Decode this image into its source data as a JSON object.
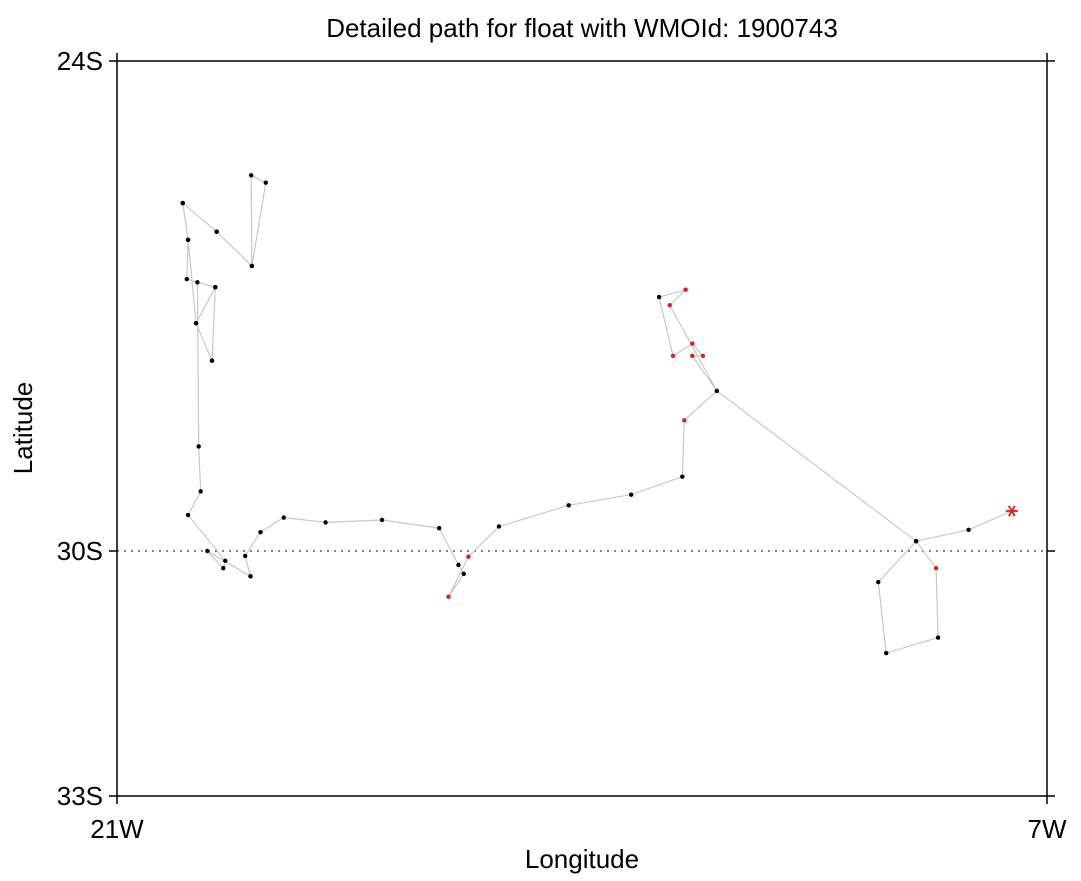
{
  "chart_data": {
    "type": "scatter",
    "title": "Detailed path for float with WMOId: 1900743",
    "xlabel": "Longitude",
    "ylabel": "Latitude",
    "xlim": [
      -21,
      -7
    ],
    "ylim": [
      -33,
      -24
    ],
    "x_ticks": [
      {
        "value": -21,
        "label": "21W"
      },
      {
        "value": -7,
        "label": "7W"
      }
    ],
    "y_ticks": [
      {
        "value": -24,
        "label": "24S"
      },
      {
        "value": -30,
        "label": "30S"
      },
      {
        "value": -33,
        "label": "33S"
      }
    ],
    "reference_line": {
      "y": -30,
      "style": "dotted"
    },
    "grid": false,
    "colors": {
      "path": "#c8c8c8",
      "point": "#000000",
      "highlight": "#e41a1c",
      "last": "#e41a1c"
    },
    "series": [
      {
        "values_lon_lat": [
          [
            -18.99,
            -30.31
          ],
          [
            -19.07,
            -30.06
          ],
          [
            -18.84,
            -29.77
          ],
          [
            -18.49,
            -29.59
          ],
          [
            -17.86,
            -29.65
          ],
          [
            -17.01,
            -29.62
          ],
          [
            -16.15,
            -29.72
          ],
          [
            -15.86,
            -30.17
          ],
          [
            -15.78,
            -30.28
          ],
          [
            -16.01,
            -30.56
          ],
          [
            -15.71,
            -30.07
          ],
          [
            -15.25,
            -29.7
          ],
          [
            -14.2,
            -29.44
          ],
          [
            -13.26,
            -29.31
          ],
          [
            -12.49,
            -29.09
          ],
          [
            -12.46,
            -28.4
          ],
          [
            -11.97,
            -28.04
          ],
          [
            -12.34,
            -27.61
          ],
          [
            -12.18,
            -27.61
          ],
          [
            -12.34,
            -27.46
          ],
          [
            -12.63,
            -27.61
          ],
          [
            -12.84,
            -26.89
          ],
          [
            -12.44,
            -26.8
          ],
          [
            -12.68,
            -26.99
          ],
          [
            -11.97,
            -28.04
          ],
          [
            -8.97,
            -29.88
          ],
          [
            -8.67,
            -30.21
          ],
          [
            -8.64,
            -31.06
          ],
          [
            -9.42,
            -31.25
          ],
          [
            -9.54,
            -30.38
          ],
          [
            -8.97,
            -29.88
          ],
          [
            -8.18,
            -29.74
          ],
          [
            -7.53,
            -29.51
          ]
        ],
        "highlighted_indices": [
          9,
          10,
          15,
          16,
          17,
          18,
          19,
          20,
          22,
          23,
          26
        ],
        "last_marker": "asterisk"
      },
      {
        "values_lon_lat": [
          [
            -19.57,
            -27.67
          ],
          [
            -19.81,
            -27.21
          ],
          [
            -19.52,
            -26.77
          ],
          [
            -19.95,
            -26.67
          ],
          [
            -19.93,
            -26.19
          ],
          [
            -20.01,
            -25.74
          ],
          [
            -19.5,
            -26.09
          ],
          [
            -18.97,
            -26.51
          ],
          [
            -18.76,
            -25.49
          ],
          [
            -18.98,
            -25.4
          ],
          [
            -18.97,
            -26.51
          ],
          [
            -19.5,
            -26.09
          ],
          [
            -20.01,
            -25.74
          ],
          [
            -19.93,
            -26.19
          ],
          [
            -19.81,
            -27.21
          ],
          [
            -19.57,
            -27.67
          ],
          [
            -19.52,
            -26.77
          ],
          [
            -19.79,
            -26.71
          ],
          [
            -19.77,
            -28.72
          ],
          [
            -19.74,
            -29.27
          ],
          [
            -19.93,
            -29.56
          ],
          [
            -19.37,
            -30.12
          ],
          [
            -19.4,
            -30.21
          ],
          [
            -19.64,
            -30.0
          ],
          [
            -18.99,
            -30.31
          ]
        ],
        "highlighted_indices": [],
        "last_marker": "none"
      }
    ]
  }
}
